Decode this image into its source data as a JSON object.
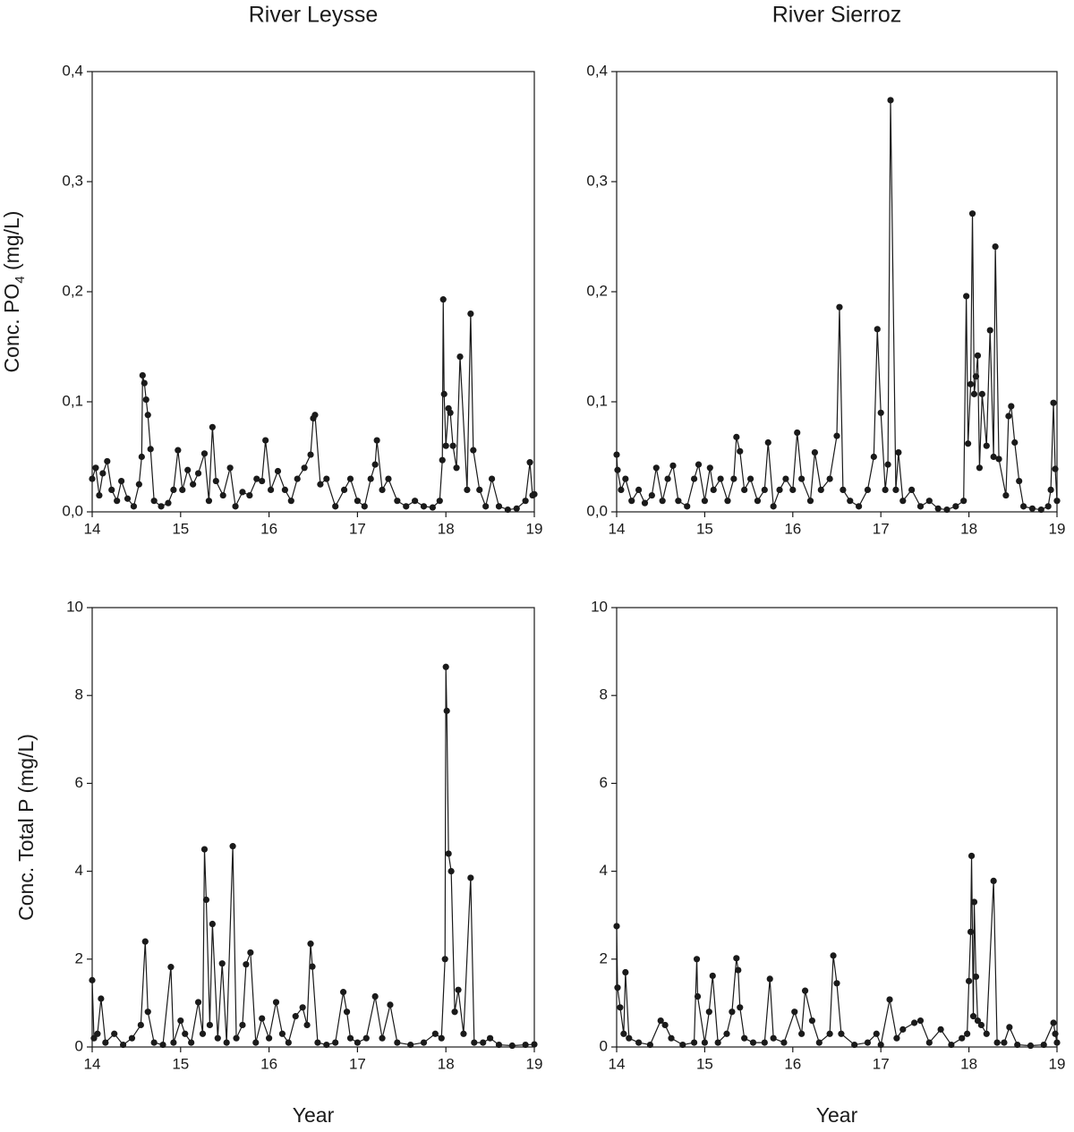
{
  "chart_data": [
    {
      "type": "line",
      "title": "River Leysse",
      "ylabel_parts": [
        "Conc. PO",
        "4",
        " (mg/L)"
      ],
      "color": "#1a1a1a",
      "xlim": [
        14,
        19
      ],
      "xticks": [
        14,
        15,
        16,
        17,
        18,
        19
      ],
      "ylim": [
        0,
        0.4
      ],
      "yticks": [
        {
          "value": 0,
          "label": "0,0"
        },
        {
          "value": 0.1,
          "label": "0,1"
        },
        {
          "value": 0.2,
          "label": "0,2"
        },
        {
          "value": 0.3,
          "label": "0,3"
        },
        {
          "value": 0.4,
          "label": "0,4"
        }
      ],
      "x": [
        14.0,
        14.04,
        14.08,
        14.12,
        14.17,
        14.22,
        14.28,
        14.33,
        14.4,
        14.47,
        14.53,
        14.56,
        14.57,
        14.59,
        14.61,
        14.63,
        14.66,
        14.7,
        14.78,
        14.86,
        14.92,
        14.97,
        15.02,
        15.08,
        15.14,
        15.2,
        15.27,
        15.32,
        15.36,
        15.4,
        15.48,
        15.56,
        15.62,
        15.7,
        15.78,
        15.86,
        15.92,
        15.96,
        16.02,
        16.1,
        16.18,
        16.25,
        16.32,
        16.4,
        16.47,
        16.5,
        16.52,
        16.58,
        16.65,
        16.75,
        16.85,
        16.92,
        17.0,
        17.08,
        17.15,
        17.2,
        17.22,
        17.28,
        17.35,
        17.45,
        17.55,
        17.65,
        17.75,
        17.85,
        17.93,
        17.96,
        17.97,
        17.98,
        18.0,
        18.03,
        18.05,
        18.08,
        18.12,
        18.16,
        18.24,
        18.28,
        18.31,
        18.38,
        18.45,
        18.52,
        18.6,
        18.7,
        18.8,
        18.9,
        18.95,
        18.98,
        19.0
      ],
      "values": [
        0.03,
        0.04,
        0.015,
        0.035,
        0.046,
        0.02,
        0.01,
        0.028,
        0.012,
        0.005,
        0.025,
        0.05,
        0.124,
        0.117,
        0.102,
        0.088,
        0.057,
        0.01,
        0.005,
        0.008,
        0.02,
        0.056,
        0.02,
        0.038,
        0.025,
        0.035,
        0.053,
        0.01,
        0.077,
        0.028,
        0.015,
        0.04,
        0.005,
        0.018,
        0.015,
        0.03,
        0.028,
        0.065,
        0.02,
        0.037,
        0.02,
        0.01,
        0.03,
        0.04,
        0.052,
        0.085,
        0.088,
        0.025,
        0.03,
        0.005,
        0.02,
        0.03,
        0.01,
        0.005,
        0.03,
        0.043,
        0.065,
        0.02,
        0.03,
        0.01,
        0.005,
        0.01,
        0.005,
        0.004,
        0.01,
        0.047,
        0.193,
        0.107,
        0.06,
        0.094,
        0.09,
        0.06,
        0.04,
        0.141,
        0.02,
        0.18,
        0.056,
        0.02,
        0.005,
        0.03,
        0.005,
        0.002,
        0.003,
        0.01,
        0.045,
        0.015,
        0.016
      ]
    },
    {
      "type": "line",
      "title": "River Sierroz",
      "color": "#1a1a1a",
      "xlim": [
        14,
        19
      ],
      "xticks": [
        14,
        15,
        16,
        17,
        18,
        19
      ],
      "ylim": [
        0,
        0.4
      ],
      "yticks": [
        {
          "value": 0,
          "label": "0,0"
        },
        {
          "value": 0.1,
          "label": "0,1"
        },
        {
          "value": 0.2,
          "label": "0,2"
        },
        {
          "value": 0.3,
          "label": "0,3"
        },
        {
          "value": 0.4,
          "label": "0,4"
        }
      ],
      "x": [
        14.0,
        14.01,
        14.05,
        14.1,
        14.17,
        14.25,
        14.32,
        14.4,
        14.45,
        14.52,
        14.58,
        14.64,
        14.7,
        14.8,
        14.88,
        14.93,
        15.0,
        15.06,
        15.1,
        15.18,
        15.26,
        15.33,
        15.36,
        15.4,
        15.45,
        15.52,
        15.6,
        15.68,
        15.72,
        15.78,
        15.85,
        15.92,
        16.0,
        16.05,
        16.1,
        16.2,
        16.25,
        16.32,
        16.42,
        16.5,
        16.53,
        16.57,
        16.65,
        16.75,
        16.85,
        16.92,
        16.96,
        17.0,
        17.05,
        17.08,
        17.11,
        17.17,
        17.2,
        17.25,
        17.35,
        17.45,
        17.55,
        17.65,
        17.75,
        17.85,
        17.94,
        17.97,
        17.99,
        18.02,
        18.04,
        18.06,
        18.08,
        18.1,
        18.12,
        18.15,
        18.2,
        18.24,
        18.28,
        18.3,
        18.34,
        18.42,
        18.45,
        18.48,
        18.52,
        18.57,
        18.62,
        18.72,
        18.82,
        18.9,
        18.93,
        18.96,
        18.98,
        19.0
      ],
      "values": [
        0.052,
        0.038,
        0.02,
        0.03,
        0.01,
        0.02,
        0.008,
        0.015,
        0.04,
        0.01,
        0.03,
        0.042,
        0.01,
        0.005,
        0.03,
        0.043,
        0.01,
        0.04,
        0.02,
        0.03,
        0.01,
        0.03,
        0.068,
        0.055,
        0.02,
        0.03,
        0.01,
        0.02,
        0.063,
        0.005,
        0.02,
        0.03,
        0.02,
        0.072,
        0.03,
        0.01,
        0.054,
        0.02,
        0.03,
        0.069,
        0.186,
        0.02,
        0.01,
        0.005,
        0.02,
        0.05,
        0.166,
        0.09,
        0.02,
        0.043,
        0.374,
        0.02,
        0.054,
        0.01,
        0.02,
        0.005,
        0.01,
        0.003,
        0.002,
        0.005,
        0.01,
        0.196,
        0.062,
        0.116,
        0.271,
        0.107,
        0.123,
        0.142,
        0.04,
        0.107,
        0.06,
        0.165,
        0.05,
        0.241,
        0.048,
        0.015,
        0.087,
        0.096,
        0.063,
        0.028,
        0.005,
        0.003,
        0.002,
        0.005,
        0.02,
        0.099,
        0.039,
        0.01
      ]
    },
    {
      "type": "line",
      "ylabel_parts": [
        "Conc. Total P (mg/L)"
      ],
      "xlabel": "Year",
      "color": "#1a1a1a",
      "xlim": [
        14,
        19
      ],
      "xticks": [
        14,
        15,
        16,
        17,
        18,
        19
      ],
      "ylim": [
        0,
        10
      ],
      "yticks": [
        0,
        2,
        4,
        6,
        8,
        10
      ],
      "x": [
        14.0,
        14.02,
        14.06,
        14.1,
        14.15,
        14.25,
        14.35,
        14.45,
        14.55,
        14.6,
        14.63,
        14.7,
        14.8,
        14.89,
        14.92,
        15.0,
        15.05,
        15.12,
        15.2,
        15.25,
        15.27,
        15.29,
        15.33,
        15.36,
        15.42,
        15.47,
        15.52,
        15.59,
        15.63,
        15.7,
        15.74,
        15.79,
        15.85,
        15.92,
        16.0,
        16.08,
        16.15,
        16.22,
        16.3,
        16.38,
        16.43,
        16.47,
        16.49,
        16.55,
        16.65,
        16.75,
        16.84,
        16.88,
        16.92,
        17.0,
        17.1,
        17.2,
        17.28,
        17.37,
        17.45,
        17.6,
        17.75,
        17.88,
        17.95,
        17.99,
        18.0,
        18.01,
        18.03,
        18.06,
        18.1,
        18.14,
        18.2,
        18.28,
        18.32,
        18.42,
        18.5,
        18.6,
        18.75,
        18.9,
        19.0
      ],
      "values": [
        1.52,
        0.2,
        0.3,
        1.1,
        0.1,
        0.3,
        0.05,
        0.2,
        0.5,
        2.4,
        0.8,
        0.1,
        0.05,
        1.82,
        0.1,
        0.6,
        0.3,
        0.1,
        1.02,
        0.3,
        4.5,
        3.35,
        0.5,
        2.8,
        0.2,
        1.9,
        0.1,
        4.57,
        0.2,
        0.5,
        1.88,
        2.15,
        0.1,
        0.65,
        0.2,
        1.02,
        0.3,
        0.1,
        0.7,
        0.9,
        0.5,
        2.35,
        1.83,
        0.1,
        0.05,
        0.1,
        1.25,
        0.8,
        0.2,
        0.1,
        0.2,
        1.15,
        0.2,
        0.96,
        0.1,
        0.05,
        0.1,
        0.3,
        0.2,
        2.0,
        8.65,
        7.65,
        4.4,
        4.0,
        0.8,
        1.3,
        0.3,
        3.85,
        0.1,
        0.1,
        0.2,
        0.05,
        0.03,
        0.05,
        0.06
      ]
    },
    {
      "type": "line",
      "xlabel": "Year",
      "color": "#1a1a1a",
      "xlim": [
        14,
        19
      ],
      "xticks": [
        14,
        15,
        16,
        17,
        18,
        19
      ],
      "ylim": [
        0,
        10
      ],
      "yticks": [
        0,
        2,
        4,
        6,
        8,
        10
      ],
      "x": [
        14.0,
        14.01,
        14.04,
        14.08,
        14.1,
        14.14,
        14.25,
        14.38,
        14.5,
        14.55,
        14.62,
        14.75,
        14.88,
        14.91,
        14.92,
        15.0,
        15.05,
        15.09,
        15.15,
        15.25,
        15.31,
        15.36,
        15.38,
        15.4,
        15.45,
        15.55,
        15.68,
        15.74,
        15.78,
        15.9,
        16.02,
        16.1,
        16.14,
        16.22,
        16.3,
        16.42,
        16.46,
        16.5,
        16.55,
        16.7,
        16.85,
        16.95,
        17.0,
        17.1,
        17.18,
        17.25,
        17.38,
        17.45,
        17.55,
        17.68,
        17.8,
        17.92,
        17.98,
        18.0,
        18.02,
        18.03,
        18.05,
        18.06,
        18.08,
        18.1,
        18.14,
        18.2,
        18.28,
        18.32,
        18.4,
        18.46,
        18.55,
        18.7,
        18.85,
        18.96,
        18.98,
        19.0
      ],
      "values": [
        2.75,
        1.35,
        0.9,
        0.3,
        1.7,
        0.2,
        0.1,
        0.05,
        0.6,
        0.5,
        0.2,
        0.05,
        0.1,
        2.0,
        1.15,
        0.1,
        0.8,
        1.62,
        0.1,
        0.3,
        0.8,
        2.02,
        1.75,
        0.9,
        0.2,
        0.1,
        0.1,
        1.55,
        0.2,
        0.1,
        0.8,
        0.3,
        1.28,
        0.6,
        0.1,
        0.3,
        2.08,
        1.45,
        0.3,
        0.05,
        0.1,
        0.3,
        0.05,
        1.08,
        0.2,
        0.4,
        0.55,
        0.6,
        0.1,
        0.4,
        0.05,
        0.2,
        0.3,
        1.5,
        2.62,
        4.35,
        0.7,
        3.3,
        1.6,
        0.6,
        0.5,
        0.3,
        3.78,
        0.1,
        0.1,
        0.45,
        0.05,
        0.03,
        0.05,
        0.55,
        0.3,
        0.1
      ]
    }
  ]
}
